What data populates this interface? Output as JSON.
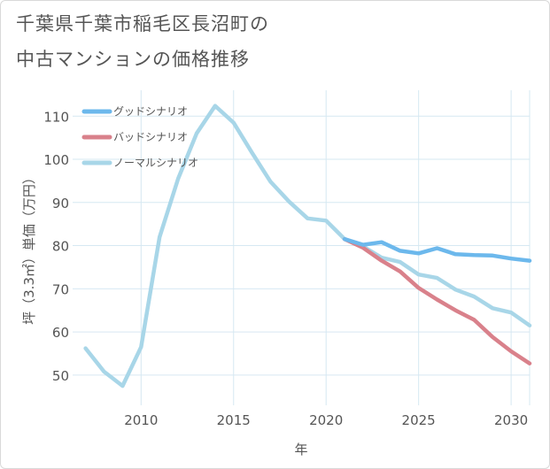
{
  "title": {
    "line1": "千葉県千葉市稲毛区長沼町の",
    "line2": "中古マンションの価格推移"
  },
  "chart_data": {
    "type": "line",
    "xlabel": "年",
    "ylabel": "坪（3.3㎡）単価（万円）",
    "xlim": [
      2006.3,
      2031
    ],
    "ylim": [
      43,
      116
    ],
    "xticks": [
      2010,
      2015,
      2020,
      2025,
      2030
    ],
    "yticks": [
      50,
      60,
      70,
      80,
      90,
      100,
      110
    ],
    "grid": true,
    "legend_position": "top-left",
    "series": [
      {
        "name": "グッドシナリオ",
        "color": "#6cb8ec",
        "x": [
          2021,
          2022,
          2023,
          2024,
          2025,
          2026,
          2027,
          2028,
          2029,
          2030,
          2031
        ],
        "y": [
          81.5,
          80.2,
          80.8,
          78.8,
          78.2,
          79.4,
          78.0,
          77.8,
          77.7,
          77.0,
          76.5
        ]
      },
      {
        "name": "バッドシナリオ",
        "color": "#d9818b",
        "x": [
          2021,
          2022,
          2023,
          2024,
          2025,
          2026,
          2027,
          2028,
          2029,
          2030,
          2031
        ],
        "y": [
          81.5,
          79.5,
          76.5,
          74.0,
          70.2,
          67.5,
          65.0,
          62.8,
          58.8,
          55.5,
          52.7
        ]
      },
      {
        "name": "ノーマルシナリオ",
        "color": "#a8d6e8",
        "x": [
          2007,
          2008,
          2009,
          2010,
          2011,
          2012,
          2013,
          2014,
          2015,
          2016,
          2017,
          2018,
          2019,
          2020,
          2021,
          2022,
          2023,
          2024,
          2025,
          2026,
          2027,
          2028,
          2029,
          2030,
          2031
        ],
        "y": [
          56.2,
          50.8,
          47.5,
          56.5,
          82.0,
          95.5,
          106.0,
          112.4,
          108.5,
          101.5,
          94.8,
          90.2,
          86.3,
          85.8,
          81.5,
          79.8,
          77.2,
          76.2,
          73.3,
          72.5,
          69.8,
          68.2,
          65.5,
          64.5,
          61.5
        ]
      }
    ]
  }
}
